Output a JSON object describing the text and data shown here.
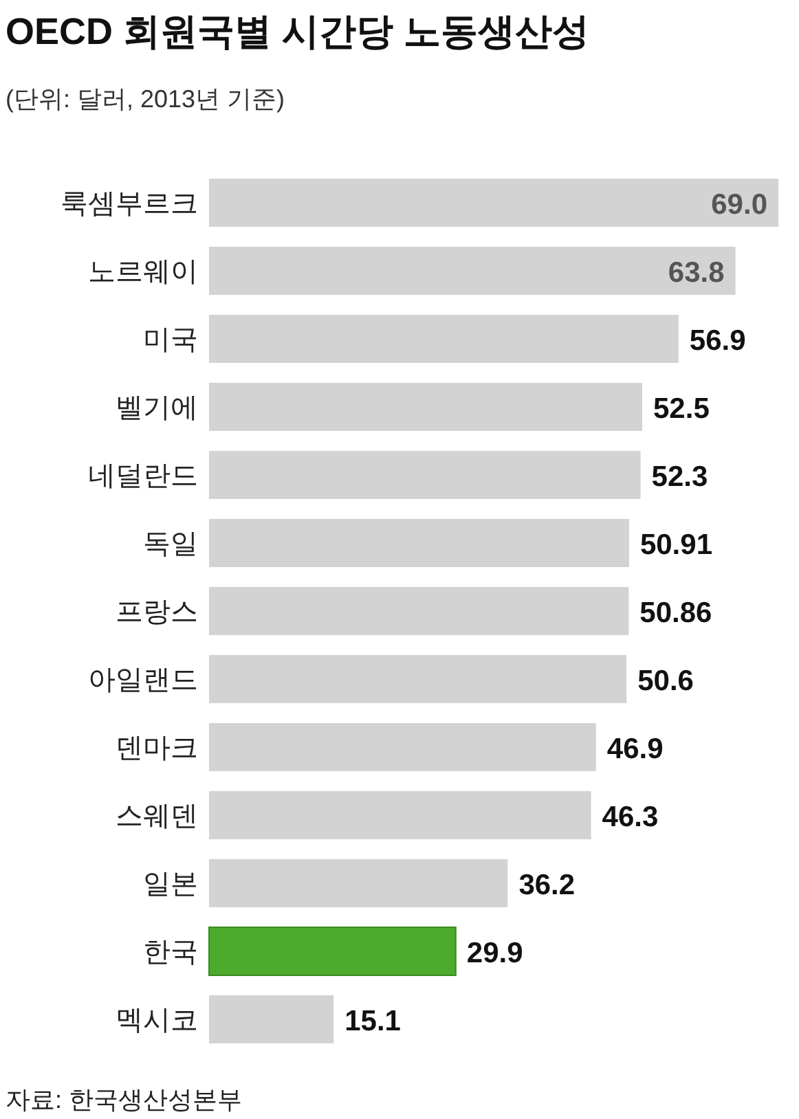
{
  "chart_data": {
    "type": "bar",
    "orientation": "horizontal",
    "title": "OECD 회원국별 시간당 노동생산성",
    "subtitle": "(단위: 달러, 2013년 기준)",
    "categories": [
      "룩셈부르크",
      "노르웨이",
      "미국",
      "벨기에",
      "네덜란드",
      "독일",
      "프랑스",
      "아일랜드",
      "덴마크",
      "스웨덴",
      "일본",
      "한국",
      "멕시코"
    ],
    "values": [
      69.0,
      63.8,
      56.9,
      52.5,
      52.3,
      50.91,
      50.86,
      50.6,
      46.9,
      46.3,
      36.2,
      29.9,
      15.1
    ],
    "value_labels": [
      "69.0",
      "63.8",
      "56.9",
      "52.5",
      "52.3",
      "50.91",
      "50.86",
      "50.6",
      "46.9",
      "46.3",
      "36.2",
      "29.9",
      "15.1"
    ],
    "colors": [
      "#d3d3d3",
      "#d3d3d3",
      "#d3d3d3",
      "#d3d3d3",
      "#d3d3d3",
      "#d3d3d3",
      "#d3d3d3",
      "#d3d3d3",
      "#d3d3d3",
      "#d3d3d3",
      "#d3d3d3",
      "#4cab2c",
      "#d3d3d3"
    ],
    "annotations": [
      "자료: 한국생산성본부"
    ]
  }
}
